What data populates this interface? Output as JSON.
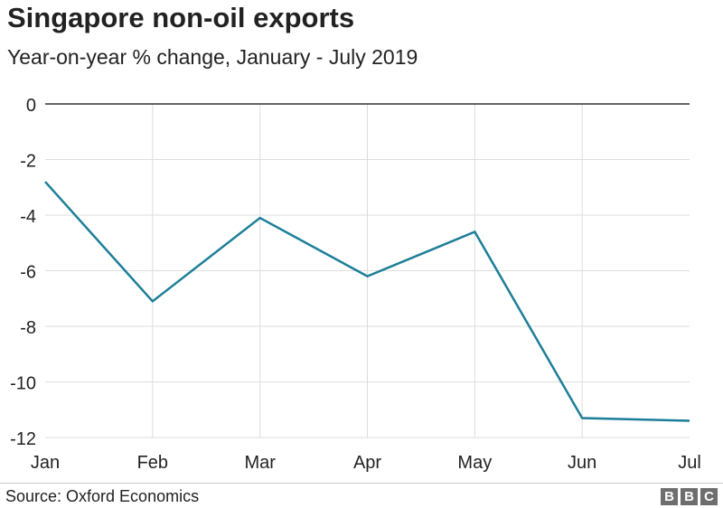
{
  "header": {
    "title": "Singapore non-oil exports",
    "subtitle": "Year-on-year % change, January - July 2019"
  },
  "footer": {
    "source": "Source: Oxford Economics",
    "logo_letters": [
      "B",
      "B",
      "C"
    ]
  },
  "colors": {
    "series": "#1d7e99",
    "grid": "#dddddd",
    "axis": "#333333",
    "logo": "#6e6e6e"
  },
  "chart_data": {
    "type": "line",
    "title": "Singapore non-oil exports",
    "subtitle": "Year-on-year % change, January - July 2019",
    "xlabel": "",
    "ylabel": "",
    "categories": [
      "Jan",
      "Feb",
      "Mar",
      "Apr",
      "May",
      "Jun",
      "Jul"
    ],
    "series": [
      {
        "values": [
          -2.8,
          -7.1,
          -4.1,
          -6.2,
          -4.6,
          -11.3,
          -11.4
        ]
      }
    ],
    "ylim": [
      -12,
      0
    ],
    "yticks": [
      0,
      -2,
      -4,
      -6,
      -8,
      -10,
      -12
    ],
    "ytick_labels": [
      "0",
      "-2",
      "-4",
      "-6",
      "-8",
      "-10",
      "-12"
    ],
    "grid": true,
    "legend": "none"
  }
}
